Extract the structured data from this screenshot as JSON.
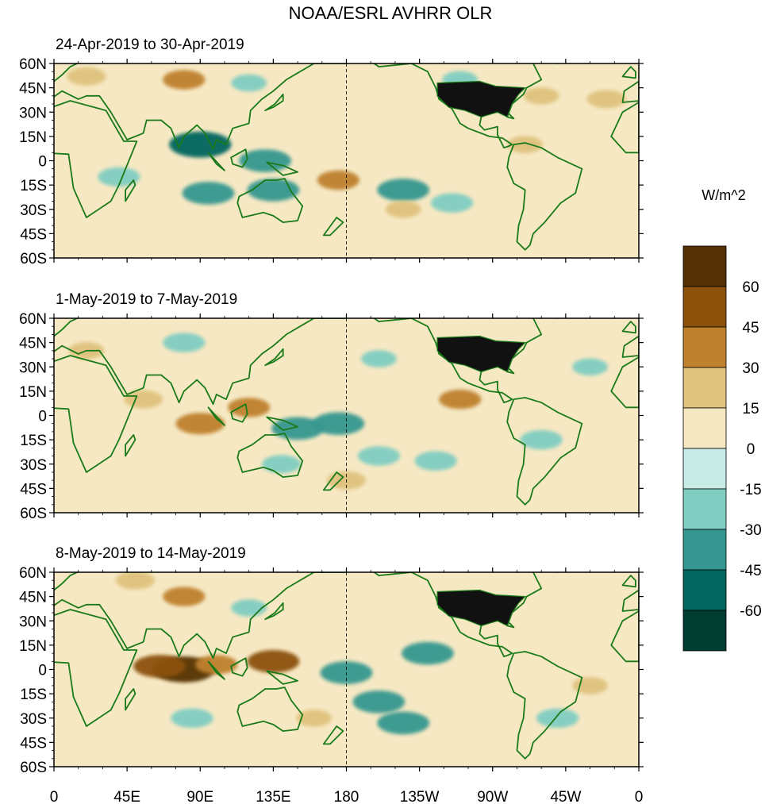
{
  "figure_title": "NOAA/ESRL AVHRR OLR",
  "colorbar": {
    "unit": "W/m^2",
    "levels": [
      "60",
      "45",
      "30",
      "15",
      "0",
      "-15",
      "-30",
      "-45",
      "-60"
    ],
    "colors": [
      "#543005",
      "#8c510a",
      "#bf812d",
      "#dfc27d",
      "#f6e8c3",
      "#c7eae5",
      "#80cdc1",
      "#35978f",
      "#01665e",
      "#003c30"
    ]
  },
  "colors": {
    "land_outline": "#1a7a1a",
    "us_mask": "#111111",
    "ocean_base": "#f6e8c3"
  },
  "chart_data": {
    "type": "heatmap",
    "variable": "OLR anomaly",
    "x_tick_labels": [
      "0",
      "45E",
      "90E",
      "135E",
      "180",
      "135W",
      "90W",
      "45W",
      "0"
    ],
    "x_ticks_deg": [
      0,
      45,
      90,
      135,
      180,
      225,
      270,
      315,
      360
    ],
    "y_tick_labels": [
      "60N",
      "45N",
      "30N",
      "15N",
      "0",
      "15S",
      "30S",
      "45S",
      "60S"
    ],
    "y_ticks_deg": [
      60,
      45,
      30,
      15,
      0,
      -15,
      -30,
      -45,
      -60
    ],
    "xlim_deg": [
      0,
      360
    ],
    "ylim_deg": [
      -60,
      60
    ],
    "panels": [
      {
        "title": "24-Apr-2019 to 30-Apr-2019",
        "features": [
          {
            "lon": 90,
            "lat": 10,
            "value": -60
          },
          {
            "lon": 95,
            "lat": -20,
            "value": -45
          },
          {
            "lon": 130,
            "lat": 0,
            "value": -45
          },
          {
            "lon": 135,
            "lat": -18,
            "value": -45
          },
          {
            "lon": 40,
            "lat": -10,
            "value": -30
          },
          {
            "lon": 215,
            "lat": -18,
            "value": -45
          },
          {
            "lon": 245,
            "lat": -26,
            "value": -30
          },
          {
            "lon": 175,
            "lat": -12,
            "value": 30
          },
          {
            "lon": 215,
            "lat": -30,
            "value": 20
          },
          {
            "lon": 290,
            "lat": 10,
            "value": 20
          },
          {
            "lon": 120,
            "lat": 48,
            "value": -20
          },
          {
            "lon": 80,
            "lat": 50,
            "value": 30
          },
          {
            "lon": 340,
            "lat": 38,
            "value": 25
          },
          {
            "lon": 300,
            "lat": 40,
            "value": 20
          },
          {
            "lon": 250,
            "lat": 50,
            "value": -20
          },
          {
            "lon": 20,
            "lat": 52,
            "value": 25
          }
        ]
      },
      {
        "title": "1-May-2019 to 7-May-2019",
        "features": [
          {
            "lon": 90,
            "lat": -5,
            "value": 40
          },
          {
            "lon": 120,
            "lat": 5,
            "value": 30
          },
          {
            "lon": 55,
            "lat": 10,
            "value": 25
          },
          {
            "lon": 150,
            "lat": -8,
            "value": -45
          },
          {
            "lon": 175,
            "lat": -5,
            "value": -45
          },
          {
            "lon": 200,
            "lat": -25,
            "value": -30
          },
          {
            "lon": 235,
            "lat": -28,
            "value": -30
          },
          {
            "lon": 140,
            "lat": -30,
            "value": -25
          },
          {
            "lon": 80,
            "lat": 45,
            "value": -30
          },
          {
            "lon": 250,
            "lat": 10,
            "value": 30
          },
          {
            "lon": 300,
            "lat": -15,
            "value": -30
          },
          {
            "lon": 200,
            "lat": 35,
            "value": -20
          },
          {
            "lon": 330,
            "lat": 30,
            "value": -20
          },
          {
            "lon": 20,
            "lat": 40,
            "value": 20
          },
          {
            "lon": 180,
            "lat": -40,
            "value": 25
          }
        ]
      },
      {
        "title": "8-May-2019 to 14-May-2019",
        "features": [
          {
            "lon": 80,
            "lat": 0,
            "value": 60
          },
          {
            "lon": 65,
            "lat": 2,
            "value": 45
          },
          {
            "lon": 100,
            "lat": 3,
            "value": 30
          },
          {
            "lon": 135,
            "lat": 5,
            "value": 45
          },
          {
            "lon": 80,
            "lat": 45,
            "value": 30
          },
          {
            "lon": 180,
            "lat": -2,
            "value": -45
          },
          {
            "lon": 200,
            "lat": -20,
            "value": -45
          },
          {
            "lon": 215,
            "lat": -33,
            "value": -45
          },
          {
            "lon": 230,
            "lat": 10,
            "value": -45
          },
          {
            "lon": 85,
            "lat": -30,
            "value": -30
          },
          {
            "lon": 120,
            "lat": 38,
            "value": -20
          },
          {
            "lon": 310,
            "lat": -30,
            "value": -30
          },
          {
            "lon": 160,
            "lat": -30,
            "value": 20
          },
          {
            "lon": 330,
            "lat": -10,
            "value": 20
          },
          {
            "lon": 50,
            "lat": 55,
            "value": 25
          }
        ]
      }
    ]
  }
}
